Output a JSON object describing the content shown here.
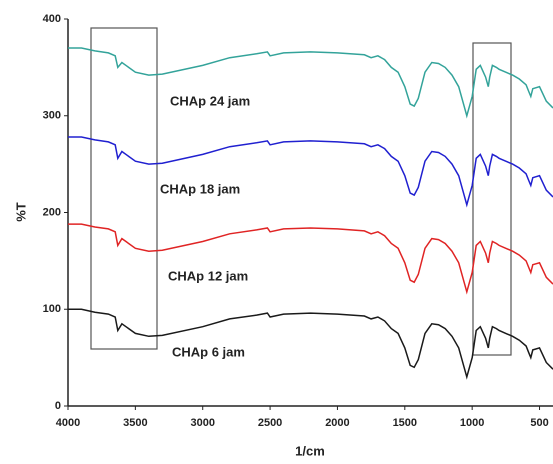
{
  "chart_data": {
    "type": "line",
    "xlabel": "1/cm",
    "ylabel": "%T",
    "x": [
      4000,
      3900,
      3800,
      3700,
      3650,
      3630,
      3600,
      3500,
      3400,
      3300,
      3000,
      2800,
      2600,
      2520,
      2500,
      2400,
      2200,
      2000,
      1800,
      1750,
      1700,
      1650,
      1600,
      1550,
      1500,
      1460,
      1430,
      1400,
      1350,
      1300,
      1250,
      1200,
      1150,
      1100,
      1060,
      1040,
      1000,
      970,
      940,
      900,
      880,
      870,
      850,
      820,
      800,
      750,
      700,
      650,
      600,
      580,
      565,
      550,
      500,
      450,
      400
    ],
    "series": [
      {
        "name": "CHAp 24 jam",
        "color": "#33a39a",
        "values": [
          370,
          370,
          367,
          365,
          362,
          350,
          355,
          345,
          342,
          343,
          352,
          360,
          364,
          366,
          362,
          365,
          366,
          365,
          363,
          360,
          362,
          358,
          350,
          345,
          330,
          312,
          310,
          318,
          345,
          355,
          354,
          350,
          342,
          330,
          310,
          300,
          320,
          348,
          352,
          340,
          330,
          340,
          352,
          350,
          348,
          345,
          342,
          338,
          332,
          325,
          320,
          328,
          330,
          315,
          308
        ]
      },
      {
        "name": "CHAp 18 jam",
        "color": "#2020d0",
        "values": [
          278,
          278,
          275,
          273,
          270,
          256,
          263,
          253,
          250,
          251,
          260,
          268,
          272,
          274,
          270,
          273,
          274,
          273,
          271,
          268,
          270,
          266,
          258,
          253,
          238,
          220,
          218,
          226,
          253,
          263,
          262,
          258,
          250,
          238,
          218,
          208,
          228,
          256,
          260,
          248,
          238,
          248,
          260,
          258,
          256,
          253,
          250,
          246,
          240,
          233,
          228,
          236,
          238,
          223,
          216
        ]
      },
      {
        "name": "CHAp 12 jam",
        "color": "#e02424",
        "values": [
          188,
          188,
          185,
          183,
          180,
          166,
          173,
          163,
          160,
          161,
          170,
          178,
          182,
          184,
          180,
          183,
          184,
          183,
          181,
          178,
          180,
          176,
          168,
          163,
          148,
          130,
          128,
          136,
          163,
          173,
          172,
          168,
          160,
          148,
          128,
          118,
          138,
          166,
          170,
          158,
          148,
          158,
          170,
          168,
          166,
          163,
          160,
          156,
          150,
          143,
          138,
          146,
          148,
          133,
          126
        ]
      },
      {
        "name": "CHAp 6 jam",
        "color": "#1a1a1a",
        "values": [
          100,
          100,
          97,
          95,
          92,
          78,
          85,
          75,
          72,
          73,
          82,
          90,
          94,
          96,
          92,
          95,
          96,
          95,
          93,
          90,
          92,
          88,
          80,
          75,
          60,
          42,
          40,
          48,
          75,
          85,
          84,
          80,
          72,
          60,
          40,
          30,
          50,
          78,
          82,
          70,
          60,
          70,
          82,
          80,
          78,
          75,
          72,
          68,
          62,
          55,
          50,
          58,
          60,
          45,
          38
        ]
      }
    ],
    "xlim": [
      4000,
      400
    ],
    "xticks": [
      4000,
      3500,
      3000,
      2500,
      2000,
      1500,
      1000,
      500
    ],
    "ylim": [
      0,
      400
    ],
    "yticks": [
      0,
      100,
      200,
      300,
      400
    ]
  }
}
